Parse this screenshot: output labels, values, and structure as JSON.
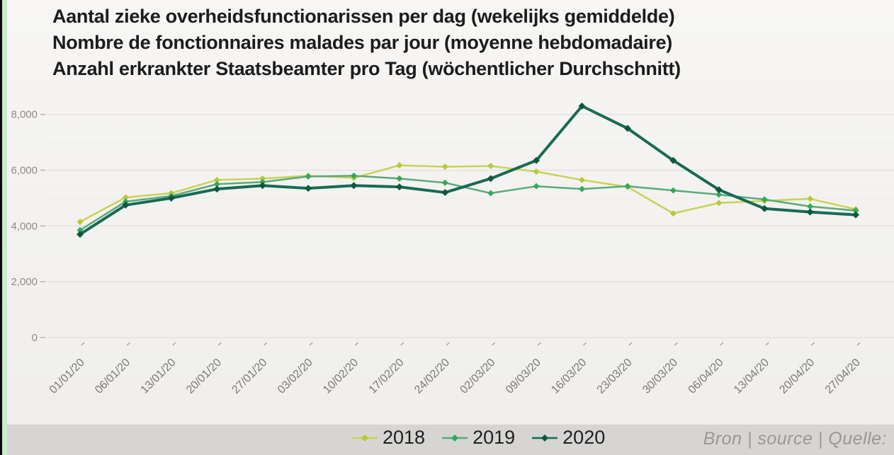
{
  "title": {
    "nl": "Aantal zieke overheidsfunctionarissen per dag (wekelijks gemiddelde)",
    "fr": "Nombre de fonctionnaires malades par jour (moyenne hebdomadaire)",
    "de": "Anzahl erkrankter Staatsbeamter pro Tag (wöchentlicher Durchschnitt)"
  },
  "source_label": "Bron | source | Quelle:",
  "colors": {
    "background": "#f2f1ef",
    "bottom_band": "#d6d5d3",
    "left_strip": "#cfe7cb",
    "major_grid": "#e3e1df",
    "minor_grid": "#edebe9",
    "axis_text": "#8e8c8a"
  },
  "chart_data": {
    "type": "line",
    "title": "Aantal zieke overheidsfunctionarissen per dag (wekelijks gemiddelde)",
    "xlabel": "",
    "ylabel": "",
    "ylim": [
      0,
      8800
    ],
    "grid": true,
    "legend_position": "bottom",
    "y_ticks": [
      0,
      2000,
      4000,
      6000,
      8000
    ],
    "y_tick_labels": [
      "0",
      "2,000",
      "4,000",
      "6,000",
      "8,000"
    ],
    "minor_y_ticks": [
      1000,
      3000,
      5000,
      7000
    ],
    "categories": [
      "01/01/20",
      "06/01/20",
      "13/01/20",
      "20/01/20",
      "27/01/20",
      "03/02/20",
      "10/02/20",
      "17/02/20",
      "24/02/20",
      "02/03/20",
      "09/03/20",
      "16/03/20",
      "23/03/20",
      "30/03/20",
      "06/04/20",
      "13/04/20",
      "20/04/20",
      "27/04/20"
    ],
    "series": [
      {
        "name": "2018",
        "color": "#c8d254",
        "marker_color": "#b7c838",
        "line_width": 2.5,
        "marker_size": 4.5,
        "values": [
          4150,
          5025,
          5175,
          5650,
          5700,
          5800,
          5725,
          6175,
          6125,
          6150,
          5950,
          5650,
          5400,
          4450,
          4825,
          4900,
          4975,
          4600
        ]
      },
      {
        "name": "2019",
        "color": "#5ba97b",
        "marker_color": "#35a75a",
        "line_width": 2.5,
        "marker_size": 4.5,
        "values": [
          3850,
          4875,
          5075,
          5500,
          5575,
          5775,
          5800,
          5700,
          5550,
          5175,
          5425,
          5325,
          5425,
          5275,
          5125,
          4950,
          4700,
          4550
        ]
      },
      {
        "name": "2020",
        "color": "#186a54",
        "marker_color": "#10573f",
        "line_width": 4,
        "marker_size": 5,
        "values": [
          3700,
          4750,
          5000,
          5325,
          5450,
          5350,
          5450,
          5400,
          5200,
          5700,
          6350,
          8300,
          7500,
          6350,
          5300,
          4625,
          4500,
          4400
        ]
      }
    ]
  }
}
